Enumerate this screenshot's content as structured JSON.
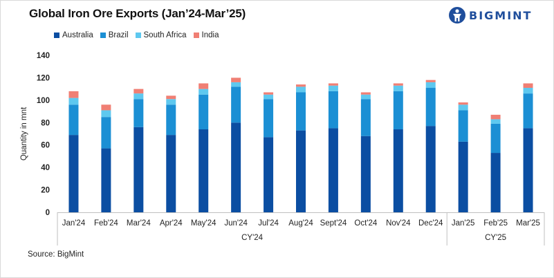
{
  "header": {
    "title": "Global Iron Ore Exports (Jan’24-Mar’25)",
    "logo_text": "BIGMINT"
  },
  "source": "Source: BigMint",
  "colors": {
    "Australia": "#0b4ea2",
    "Brazil": "#1b8fd4",
    "South Africa": "#5ec8ef",
    "India": "#f07f74"
  },
  "chart_data": {
    "type": "bar",
    "stacked": true,
    "title": "Global Iron Ore Exports (Jan’24-Mar’25)",
    "xlabel": "",
    "ylabel": "Quantity in mnt",
    "ylim": [
      0,
      140
    ],
    "yticks": [
      0,
      20,
      40,
      60,
      80,
      100,
      120,
      140
    ],
    "grid": false,
    "legend": "top-left",
    "categories": [
      "Jan'24",
      "Feb'24",
      "Mar'24",
      "Apr'24",
      "May'24",
      "Jun'24",
      "Jul'24",
      "Aug'24",
      "Sept'24",
      "Oct'24",
      "Nov'24",
      "Dec'24",
      "Jan'25",
      "Feb'25",
      "Mar'25"
    ],
    "groups": [
      {
        "label": "CY'24",
        "from": 0,
        "to": 11
      },
      {
        "label": "CY'25",
        "from": 12,
        "to": 14
      }
    ],
    "series": [
      {
        "name": "Australia",
        "values": [
          69,
          57,
          76,
          69,
          74,
          80,
          67,
          73,
          75,
          68,
          74,
          77,
          63,
          53,
          75
        ]
      },
      {
        "name": "Brazil",
        "values": [
          27,
          28,
          25,
          27,
          31,
          32,
          34,
          34,
          33,
          33,
          34,
          34,
          28,
          26,
          31
        ]
      },
      {
        "name": "South Africa",
        "values": [
          6,
          6,
          5,
          5,
          5,
          4,
          4,
          5,
          5,
          4,
          5,
          5,
          5,
          4,
          5
        ]
      },
      {
        "name": "India",
        "values": [
          6,
          5,
          4,
          3,
          5,
          4,
          2,
          2,
          2,
          2,
          2,
          2,
          2,
          4,
          4
        ]
      }
    ]
  }
}
